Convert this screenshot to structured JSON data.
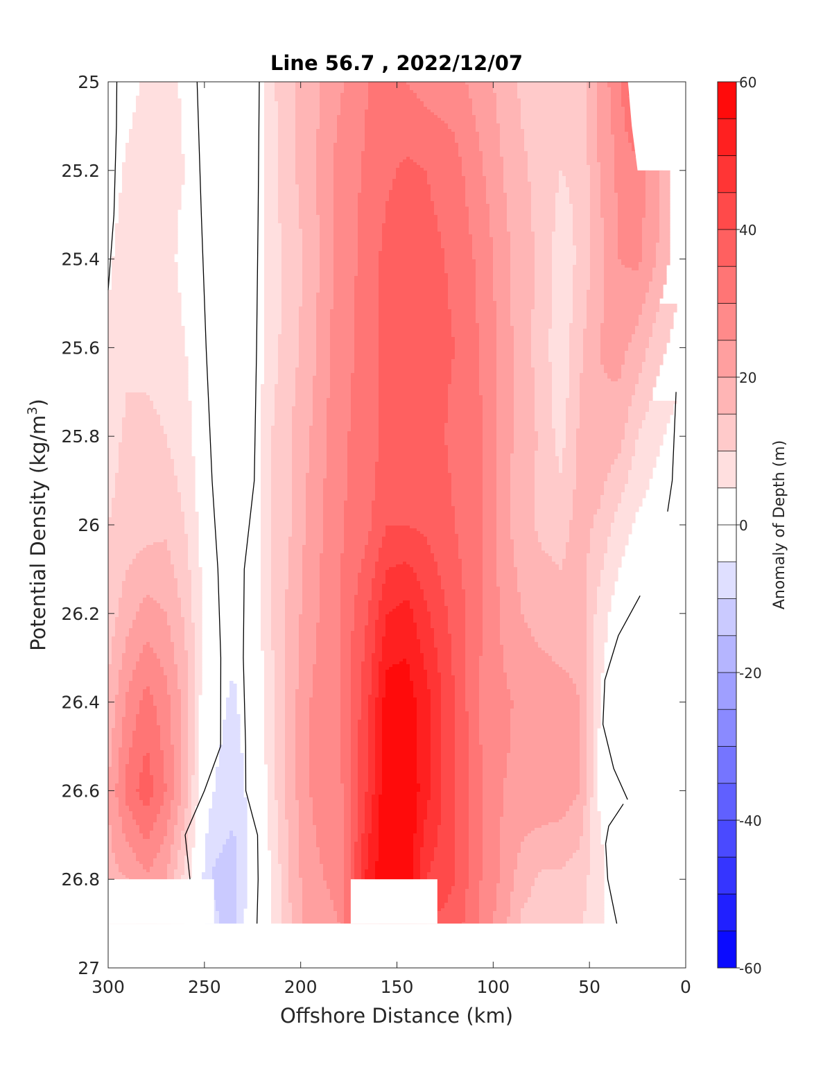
{
  "chart_data": {
    "type": "heatmap",
    "title": "Line 56.7 , 2022/12/07",
    "xlabel": "Offshore Distance (km)",
    "ylabel_main": "Potential Density (kg/m",
    "ylabel_sup": "3",
    "ylabel_close": ")",
    "x_axis": {
      "reversed": true,
      "lim": [
        0,
        300
      ],
      "ticks": [
        300,
        250,
        200,
        150,
        100,
        50,
        0
      ],
      "tick_labels": [
        "300",
        "250",
        "200",
        "150",
        "100",
        "50",
        "0"
      ]
    },
    "y_axis": {
      "reversed": true,
      "lim": [
        25,
        27
      ],
      "ticks": [
        25,
        25.2,
        25.4,
        25.6,
        25.8,
        26,
        26.2,
        26.4,
        26.6,
        26.8,
        27
      ],
      "tick_labels": [
        "25",
        "25.2",
        "25.4",
        "25.6",
        "25.8",
        "26",
        "26.2",
        "26.4",
        "26.6",
        "26.8",
        "27"
      ]
    },
    "colorbar": {
      "label": "Anomaly of Depth (m)",
      "lim": [
        -60,
        60
      ],
      "step": 5,
      "ticks": [
        60,
        40,
        20,
        0,
        -20,
        -40,
        -60
      ],
      "tick_labels": [
        "60",
        "40",
        "20",
        "0",
        "-20",
        "-40",
        "-60"
      ],
      "negative_color": "#0000ff",
      "positive_color": "#ff0000",
      "neutral_color": "#ffffff"
    },
    "grid": false,
    "bottom_rho": 26.9,
    "anomaly_by_rho": {
      "rho": [
        25.0,
        25.2,
        25.4,
        25.6,
        25.8,
        26.0,
        26.2,
        26.4,
        26.6,
        26.8,
        26.9
      ],
      "profiles": [
        {
          "x": 300,
          "values": [
            1,
            2,
            4,
            6,
            8,
            10,
            12,
            16,
            20,
            18,
            16
          ]
        },
        {
          "x": 290,
          "values": [
            3,
            6,
            8,
            9,
            11,
            12,
            18,
            26,
            32,
            20,
            18
          ]
        },
        {
          "x": 280,
          "values": [
            6,
            8,
            7,
            8,
            12,
            13,
            22,
            32,
            38,
            24,
            22
          ]
        },
        {
          "x": 270,
          "values": [
            7,
            6,
            6,
            7,
            10,
            14,
            20,
            27,
            30,
            20,
            18
          ]
        },
        {
          "x": 260,
          "values": [
            4,
            5,
            4,
            5,
            7,
            10,
            14,
            18,
            18,
            8,
            4
          ]
        },
        {
          "x": 250,
          "values": [
            1,
            2,
            1,
            1,
            1,
            2,
            4,
            1,
            -2,
            -6,
            -4
          ]
        },
        {
          "x": 245,
          "values": [
            -1,
            0,
            0,
            0,
            0,
            0,
            -1,
            -3,
            -5,
            -11,
            -9
          ]
        },
        {
          "x": 235,
          "values": [
            -5,
            -3,
            -3,
            -1,
            0,
            -1,
            -3,
            -6,
            -8,
            -13,
            -12
          ]
        },
        {
          "x": 225,
          "values": [
            -2,
            0,
            1,
            1,
            1,
            1,
            1,
            -1,
            -3,
            -1,
            0
          ]
        },
        {
          "x": 215,
          "values": [
            9,
            8,
            8,
            8,
            10,
            10,
            10,
            9,
            8,
            5,
            5
          ]
        },
        {
          "x": 205,
          "values": [
            14,
            14,
            12,
            13,
            15,
            15,
            17,
            18,
            18,
            16,
            15
          ]
        },
        {
          "x": 195,
          "values": [
            18,
            18,
            17,
            18,
            20,
            22,
            23,
            25,
            25,
            24,
            23
          ]
        },
        {
          "x": 180,
          "values": [
            24,
            27,
            27,
            28,
            29,
            29,
            30,
            30,
            28,
            26,
            25
          ]
        },
        {
          "x": 165,
          "values": [
            30,
            31,
            32,
            32,
            32,
            34,
            40,
            44,
            46,
            52,
            52
          ]
        },
        {
          "x": 155,
          "values": [
            30,
            34,
            37,
            37,
            37,
            40,
            50,
            58,
            60,
            60,
            58
          ]
        },
        {
          "x": 145,
          "values": [
            30,
            36,
            38,
            39,
            38,
            40,
            52,
            58,
            60,
            60,
            58
          ]
        },
        {
          "x": 135,
          "values": [
            28,
            35,
            37,
            37,
            37,
            39,
            46,
            52,
            52,
            45,
            40
          ]
        },
        {
          "x": 120,
          "values": [
            27,
            32,
            34,
            35,
            34,
            35,
            38,
            40,
            40,
            40,
            38
          ]
        },
        {
          "x": 105,
          "values": [
            22,
            25,
            28,
            29,
            30,
            30,
            30,
            28,
            30,
            29,
            28
          ]
        },
        {
          "x": 95,
          "values": [
            18,
            20,
            22,
            23,
            22,
            22,
            24,
            26,
            25,
            24,
            22
          ]
        },
        {
          "x": 85,
          "values": [
            14,
            16,
            17,
            17,
            18,
            17,
            20,
            24,
            24,
            17,
            14
          ]
        },
        {
          "x": 75,
          "values": [
            12,
            13,
            14,
            13,
            14,
            14,
            18,
            23,
            24,
            14,
            13
          ]
        },
        {
          "x": 65,
          "values": [
            10,
            10,
            7,
            6,
            8,
            13,
            17,
            22,
            23,
            14,
            12
          ]
        },
        {
          "x": 55,
          "values": [
            11,
            11,
            11,
            14,
            16,
            17,
            18,
            20,
            20,
            12,
            11
          ]
        },
        {
          "x": 45,
          "values": [
            22,
            20,
            18,
            20,
            19,
            14,
            8,
            5,
            4,
            7,
            6
          ]
        },
        {
          "x": 35,
          "values": [
            28,
            26,
            25,
            22,
            17,
            8,
            2,
            -1,
            0,
            1,
            1
          ]
        },
        {
          "x": 25,
          "values": [
            42,
            28,
            26,
            18,
            10,
            4,
            -1,
            -5,
            -3,
            0,
            0
          ]
        },
        {
          "x": 15,
          "values": [
            50,
            22,
            20,
            12,
            6,
            2,
            0,
            -1,
            0,
            0,
            0
          ]
        },
        {
          "x": 5,
          "values": [
            0,
            12,
            12,
            8,
            3,
            0,
            0,
            0,
            0,
            0,
            0
          ]
        }
      ]
    },
    "masked_regions": [
      {
        "name": "bottom-gap-offshore",
        "x": [
          245,
          300
        ],
        "rho": [
          26.8,
          26.9
        ]
      },
      {
        "name": "bottom-gap-center",
        "x": [
          129,
          174
        ],
        "rho": [
          26.8,
          26.9
        ]
      },
      {
        "name": "below-deepest-surface",
        "x": [
          0,
          300
        ],
        "rho": [
          26.9,
          27
        ]
      },
      {
        "name": "nearshore-shelf",
        "x": [
          0,
          36
        ],
        "rho": [
          26.3,
          27
        ]
      },
      {
        "name": "nearshore-top-corner",
        "polygon_xy": [
          [
            30,
            25
          ],
          [
            28,
            25.1
          ],
          [
            25,
            25.2
          ],
          [
            0,
            25.2
          ],
          [
            0,
            25
          ]
        ]
      }
    ],
    "zero_contours": [
      {
        "name": "zero-contour-west-a",
        "points": [
          [
            300,
            25.47
          ],
          [
            297,
            25.3
          ],
          [
            295.7,
            25.1
          ],
          [
            295.5,
            25
          ]
        ]
      },
      {
        "name": "zero-contour-west-b",
        "points": [
          [
            253.8,
            25
          ],
          [
            251.6,
            25.3
          ],
          [
            249.1,
            25.6
          ],
          [
            246,
            25.9
          ],
          [
            243,
            26.1
          ],
          [
            241.5,
            26.3
          ],
          [
            241.6,
            26.5
          ],
          [
            250,
            26.6
          ],
          [
            260,
            26.7
          ],
          [
            257.5,
            26.8
          ]
        ]
      },
      {
        "name": "zero-contour-west-c",
        "points": [
          [
            221.5,
            25
          ],
          [
            222.1,
            25.3
          ],
          [
            222.9,
            25.6
          ],
          [
            224.1,
            25.9
          ],
          [
            229.3,
            26.1
          ],
          [
            229.8,
            26.3
          ],
          [
            228.6,
            26.5
          ],
          [
            228.5,
            26.6
          ],
          [
            222.4,
            26.7
          ],
          [
            222.1,
            26.8
          ],
          [
            222.7,
            26.9
          ]
        ]
      },
      {
        "name": "zero-contour-east-a",
        "points": [
          [
            5,
            25.7
          ],
          [
            7,
            25.9
          ],
          [
            9.4,
            25.97
          ]
        ]
      },
      {
        "name": "zero-contour-east-b",
        "points": [
          [
            23.7,
            26.16
          ],
          [
            35,
            26.25
          ],
          [
            42,
            26.35
          ],
          [
            43,
            26.45
          ],
          [
            37.4,
            26.55
          ],
          [
            30.2,
            26.62
          ]
        ]
      },
      {
        "name": "zero-contour-east-c",
        "points": [
          [
            32.4,
            26.63
          ],
          [
            40,
            26.68
          ],
          [
            41.6,
            26.72
          ],
          [
            40.5,
            26.8
          ],
          [
            35.8,
            26.9
          ]
        ]
      }
    ]
  }
}
